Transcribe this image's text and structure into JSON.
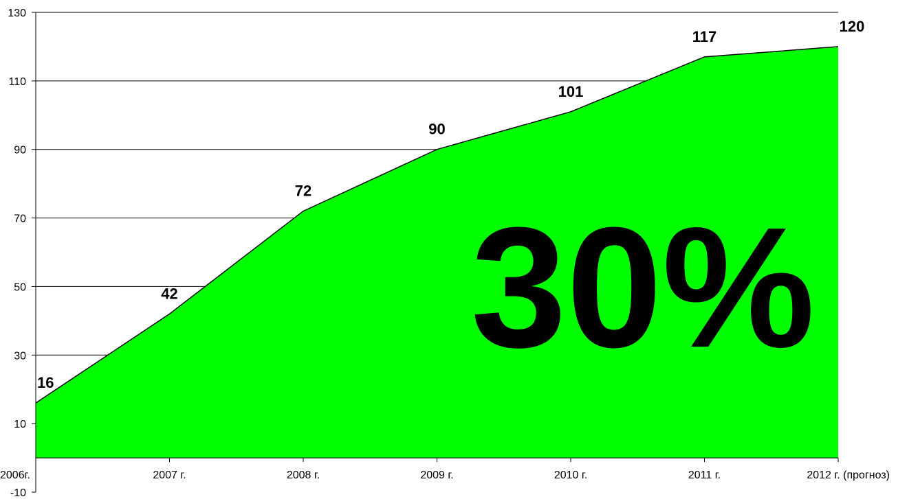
{
  "chart_data": {
    "type": "area",
    "categories": [
      "2006г.",
      "2007 г.",
      "2008 г.",
      "2009 г.",
      "2010 г.",
      "2011 г.",
      "2012 г. (прогноз)"
    ],
    "values": [
      16,
      42,
      72,
      90,
      101,
      117,
      120
    ],
    "data_labels": [
      "16",
      "42",
      "72",
      "90",
      "101",
      "117",
      "120"
    ],
    "ylim": [
      -10,
      130
    ],
    "yticks": [
      -10,
      10,
      30,
      50,
      70,
      90,
      110,
      130
    ],
    "ytick_labels": [
      "-10",
      "10",
      "30",
      "50",
      "70",
      "90",
      "110",
      "130"
    ],
    "annotation": "30%",
    "grid": true,
    "fill_color": "#00ff00",
    "line_color": "#000000"
  }
}
